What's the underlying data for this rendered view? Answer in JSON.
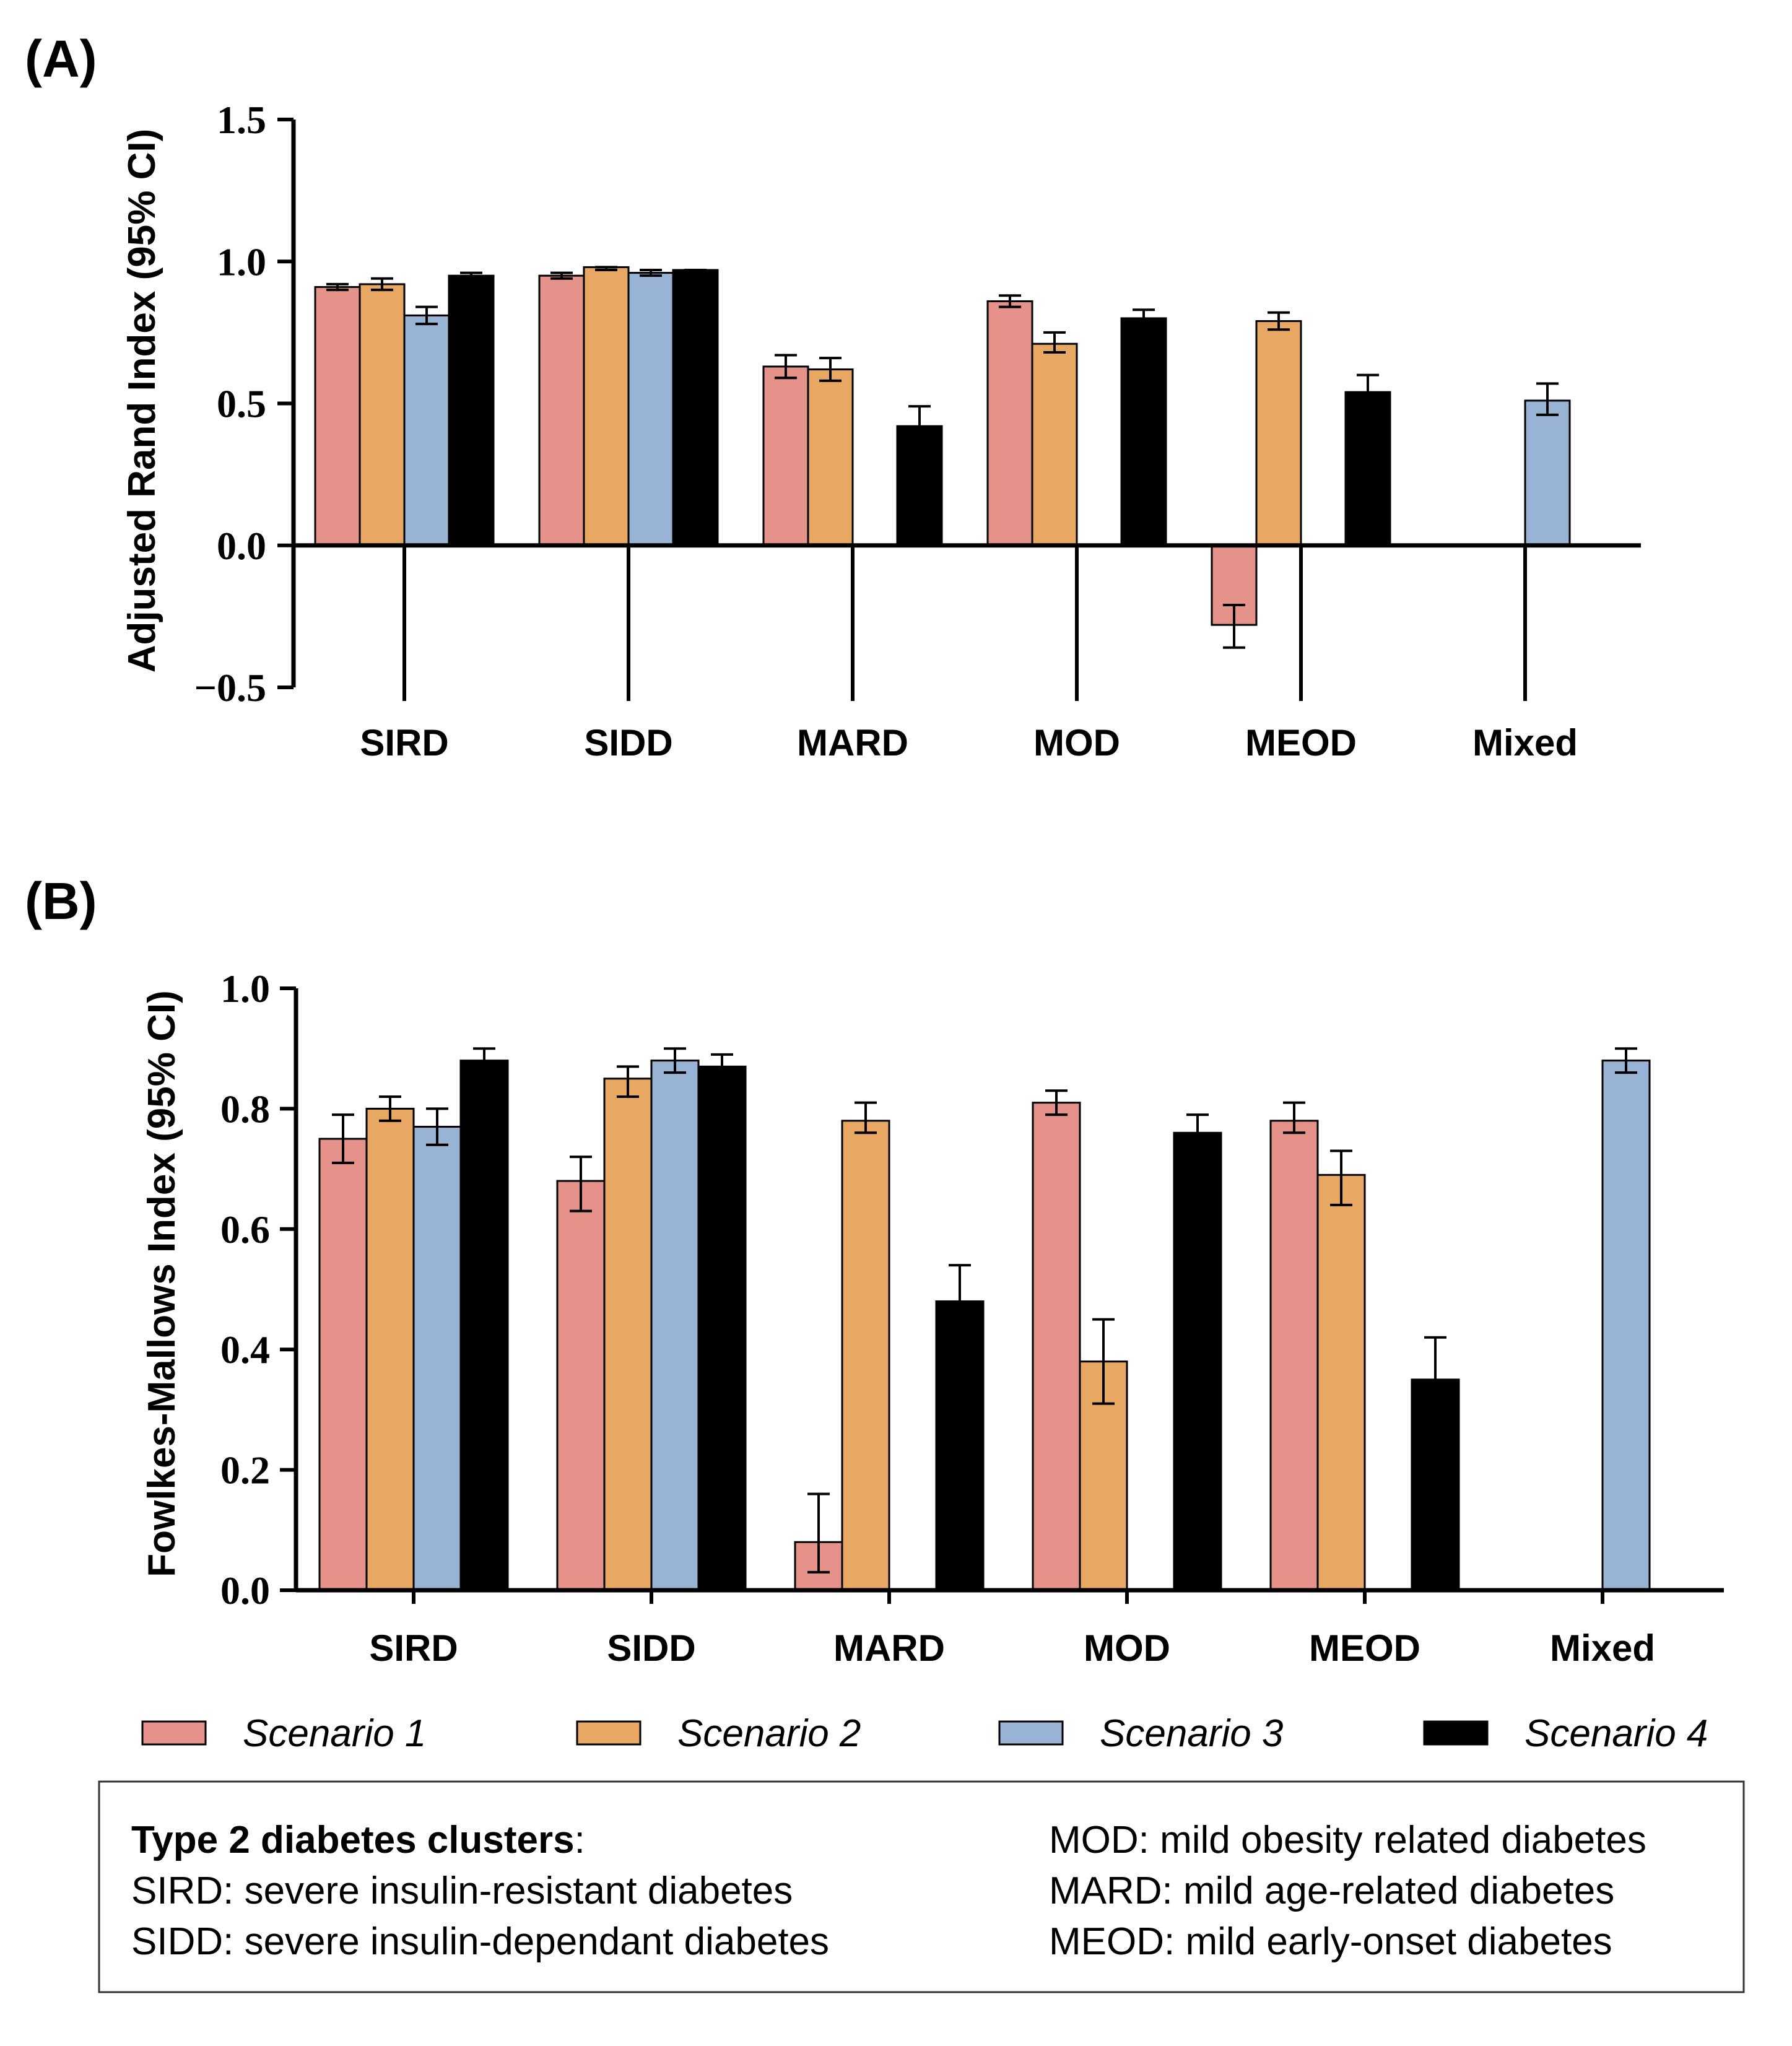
{
  "colors": {
    "scenario1": "#e5928a",
    "scenario2": "#e8a762",
    "scenario3": "#98b3d3",
    "scenario4": "#000000"
  },
  "legend": {
    "items": [
      "Scenario 1",
      "Scenario 2",
      "Scenario 3",
      "Scenario 4"
    ]
  },
  "notes": {
    "heading": "Type 2 diabetes clusters",
    "heading_suffix": ":",
    "lines_left": [
      "SIRD: severe insulin-resistant diabetes",
      "SIDD: severe insulin-dependant diabetes"
    ],
    "lines_right": [
      "MOD: mild obesity related diabetes",
      "MARD: mild age-related diabetes",
      "MEOD: mild early-onset diabetes"
    ]
  },
  "chart_data": [
    {
      "panel": "(A)",
      "type": "bar",
      "ylabel": "Adjusted Rand Index (95% CI)",
      "xlabel": "",
      "ylim": [
        -0.5,
        1.5
      ],
      "yticks": [
        -0.5,
        0.0,
        0.5,
        1.0,
        1.5
      ],
      "ytick_labels": [
        "−0.5",
        "0.0",
        "0.5",
        "1.0",
        "1.5"
      ],
      "categories": [
        "SIRD",
        "SIDD",
        "MARD",
        "MOD",
        "MEOD",
        "Mixed"
      ],
      "series": [
        {
          "name": "Scenario 1",
          "values": [
            0.91,
            0.95,
            0.63,
            0.86,
            -0.28,
            null
          ],
          "ci_low": [
            0.9,
            0.94,
            0.59,
            0.84,
            -0.36,
            null
          ],
          "ci_high": [
            0.92,
            0.96,
            0.67,
            0.88,
            -0.21,
            null
          ]
        },
        {
          "name": "Scenario 2",
          "values": [
            0.92,
            0.98,
            0.62,
            0.71,
            0.79,
            null
          ],
          "ci_low": [
            0.9,
            0.97,
            0.58,
            0.68,
            0.76,
            null
          ],
          "ci_high": [
            0.94,
            0.98,
            0.66,
            0.75,
            0.82,
            null
          ]
        },
        {
          "name": "Scenario 3",
          "values": [
            0.81,
            0.96,
            null,
            null,
            null,
            0.51
          ],
          "ci_low": [
            0.78,
            0.95,
            null,
            null,
            null,
            0.46
          ],
          "ci_high": [
            0.84,
            0.97,
            null,
            null,
            null,
            0.57
          ]
        },
        {
          "name": "Scenario 4",
          "values": [
            0.95,
            0.97,
            0.42,
            0.8,
            0.54,
            null
          ],
          "ci_low": [
            0.94,
            0.96,
            0.36,
            0.78,
            0.49,
            null
          ],
          "ci_high": [
            0.96,
            0.97,
            0.49,
            0.83,
            0.6,
            null
          ]
        }
      ]
    },
    {
      "panel": "(B)",
      "type": "bar",
      "ylabel": "Fowlkes-Mallows Index (95% CI)",
      "xlabel": "",
      "ylim": [
        0.0,
        1.0
      ],
      "yticks": [
        0.0,
        0.2,
        0.4,
        0.6,
        0.8,
        1.0
      ],
      "ytick_labels": [
        "0.0",
        "0.2",
        "0.4",
        "0.6",
        "0.8",
        "1.0"
      ],
      "categories": [
        "SIRD",
        "SIDD",
        "MARD",
        "MOD",
        "MEOD",
        "Mixed"
      ],
      "series": [
        {
          "name": "Scenario 1",
          "values": [
            0.75,
            0.68,
            0.08,
            0.81,
            0.78,
            null
          ],
          "ci_low": [
            0.71,
            0.63,
            0.03,
            0.79,
            0.76,
            null
          ],
          "ci_high": [
            0.79,
            0.72,
            0.16,
            0.83,
            0.81,
            null
          ]
        },
        {
          "name": "Scenario 2",
          "values": [
            0.8,
            0.85,
            0.78,
            0.38,
            0.69,
            null
          ],
          "ci_low": [
            0.78,
            0.82,
            0.76,
            0.31,
            0.64,
            null
          ],
          "ci_high": [
            0.82,
            0.87,
            0.81,
            0.45,
            0.73,
            null
          ]
        },
        {
          "name": "Scenario 3",
          "values": [
            0.77,
            0.88,
            null,
            null,
            null,
            0.88
          ],
          "ci_low": [
            0.74,
            0.86,
            null,
            null,
            null,
            0.86
          ],
          "ci_high": [
            0.8,
            0.9,
            null,
            null,
            null,
            0.9
          ]
        },
        {
          "name": "Scenario 4",
          "values": [
            0.88,
            0.87,
            0.48,
            0.76,
            0.35,
            null
          ],
          "ci_low": [
            0.86,
            0.85,
            0.43,
            0.73,
            0.29,
            null
          ],
          "ci_high": [
            0.9,
            0.89,
            0.54,
            0.79,
            0.42,
            null
          ]
        }
      ]
    }
  ]
}
